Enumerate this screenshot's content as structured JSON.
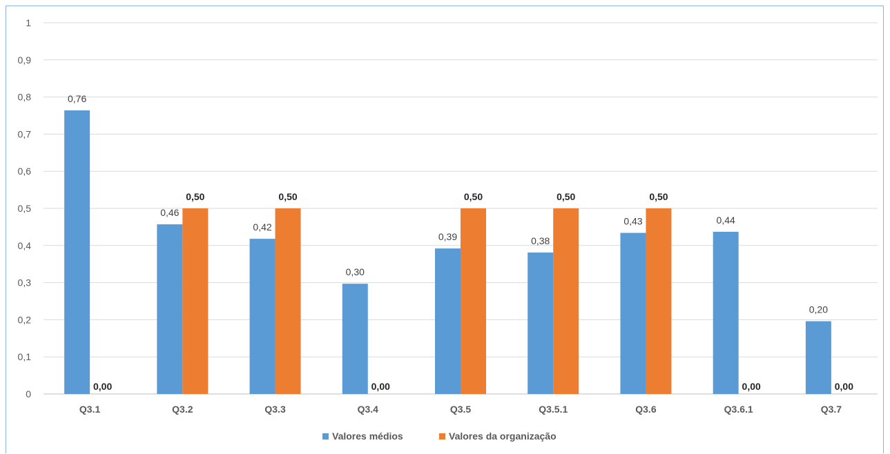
{
  "chart_data": {
    "type": "bar",
    "title": "",
    "xlabel": "",
    "ylabel": "",
    "ylim": [
      0,
      1
    ],
    "yticks": [
      "0",
      "0,1",
      "0,2",
      "0,3",
      "0,4",
      "0,5",
      "0,6",
      "0,7",
      "0,8",
      "0,9",
      "1"
    ],
    "grid": true,
    "legend_position": "bottom",
    "categories": [
      "Q3.1",
      "Q3.2",
      "Q3.3",
      "Q3.4",
      "Q3.5",
      "Q3.5.1",
      "Q3.6",
      "Q3.6.1",
      "Q3.7"
    ],
    "series": [
      {
        "name": "Valores médios",
        "color": "#5b9bd5",
        "values": [
          0.764,
          0.457,
          0.418,
          0.297,
          0.392,
          0.381,
          0.434,
          0.437,
          0.196
        ],
        "labels": [
          "0,76",
          "0,46",
          "0,42",
          "0,30",
          "0,39",
          "0,38",
          "0,43",
          "0,44",
          "0,20"
        ],
        "label_bold": false
      },
      {
        "name": "Valores da organização",
        "color": "#ed7d31",
        "values": [
          0,
          0.5,
          0.5,
          0,
          0.5,
          0.5,
          0.5,
          0,
          0
        ],
        "labels": [
          "0,00",
          "0,50",
          "0,50",
          "0,00",
          "0,50",
          "0,50",
          "0,50",
          "0,00",
          "0,00"
        ],
        "label_bold": true
      }
    ]
  }
}
